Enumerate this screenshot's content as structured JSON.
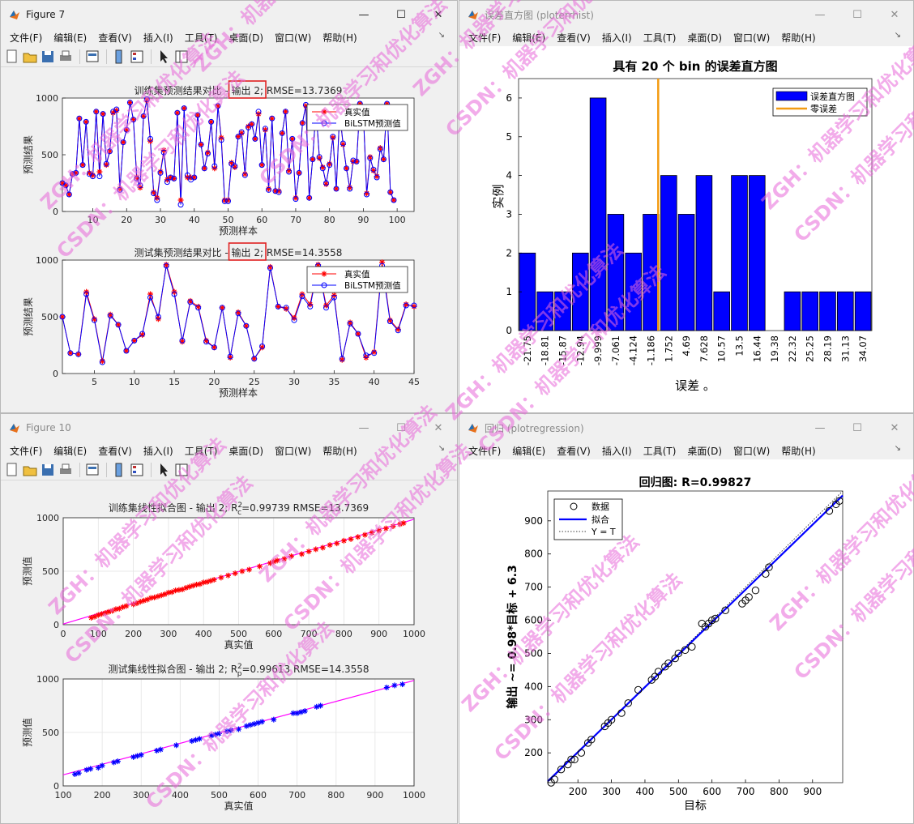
{
  "menu": [
    "文件(F)",
    "编辑(E)",
    "查看(V)",
    "插入(I)",
    "工具(T)",
    "桌面(D)",
    "窗口(W)",
    "帮助(H)"
  ],
  "colors": {
    "actual": "#ff0000",
    "pred": "#0000ff",
    "bar": "#0000ff",
    "zero": "#f39c12",
    "fit": "#0000ff",
    "train_pts": "#ff0000",
    "test_pts": "#0000ff",
    "fitline": "#ff00ff",
    "annot": "#e02020"
  },
  "watermark": {
    "text": "ZGH：机器学习和优化算法",
    "text2": "CSDN：机器学习和优化算法",
    "color": "#e868d8"
  },
  "fig7": {
    "title": "Figure 7",
    "top": {
      "title_a": "训练集预测结果对比 - ",
      "title_b": "输出 2;",
      "title_c": " RMSE=13.7369",
      "xlabel": "预测样本",
      "ylabel": "预测结果",
      "legend": [
        "真实值",
        "BiLSTM预测值"
      ],
      "xticks": [
        "10",
        "20",
        "30",
        "40",
        "50",
        "60",
        "70",
        "80",
        "90",
        "100"
      ],
      "yticks": [
        "0",
        "500",
        "1000"
      ]
    },
    "bottom": {
      "title_a": "测试集预测结果对比 - ",
      "title_b": "输出 2;",
      "title_c": " RMSE=14.3558",
      "xlabel": "预测样本",
      "ylabel": "预测结果",
      "legend": [
        "真实值",
        "BiLSTM预测值"
      ],
      "xticks": [
        "5",
        "10",
        "15",
        "20",
        "25",
        "30",
        "35",
        "40",
        "45"
      ],
      "yticks": [
        "0",
        "500",
        "1000"
      ]
    }
  },
  "hist": {
    "window_title": "误差直方图 (ploterrhist)",
    "title": "具有 20 个 bin 的误差直方图",
    "xlabel": "误差 。",
    "ylabel": "实例",
    "legend": [
      "误差直方图",
      "零误差"
    ],
    "yticks": [
      "0",
      "1",
      "2",
      "3",
      "4",
      "5",
      "6"
    ]
  },
  "fig10": {
    "title": "Figure 10",
    "top": {
      "title": "训练集线性拟合图 - 输出 2; R",
      "sub": "c",
      "sup": "2",
      "rest": "=0.99739  RMSE=13.7369",
      "xlabel": "真实值",
      "ylabel": "预测值",
      "xticks": [
        "0",
        "100",
        "200",
        "300",
        "400",
        "500",
        "600",
        "700",
        "800",
        "900",
        "1000"
      ],
      "yticks": [
        "0",
        "500",
        "1000"
      ]
    },
    "bottom": {
      "title": "测试集线性拟合图 - 输出 2; R",
      "sub": "p",
      "sup": "2",
      "rest": "=0.99613  RMSE=14.3558",
      "xlabel": "真实值",
      "ylabel": "预测值",
      "xticks": [
        "100",
        "200",
        "300",
        "400",
        "500",
        "600",
        "700",
        "800",
        "900",
        "1000"
      ],
      "yticks": [
        "0",
        "500",
        "1000"
      ]
    }
  },
  "regr": {
    "window_title": "回归 (plotregression)",
    "title": "回归图: R=0.99827",
    "xlabel": "目标",
    "ylabel": "输出 ~= 0.98*目标 + 6.3",
    "legend": [
      "数据",
      "拟合",
      "Y = T"
    ],
    "xticks": [
      "200",
      "300",
      "400",
      "500",
      "600",
      "700",
      "800",
      "900"
    ],
    "yticks": [
      "200",
      "300",
      "400",
      "500",
      "600",
      "700",
      "800",
      "900"
    ]
  },
  "chart_data": [
    {
      "type": "line",
      "title": "训练集预测结果对比 - 输出 2; RMSE=13.7369",
      "xlabel": "预测样本",
      "ylabel": "预测结果",
      "xlim": [
        1,
        105
      ],
      "ylim": [
        0,
        1000
      ],
      "x_start": 1,
      "series": [
        {
          "name": "真实值",
          "values": [
            250,
            230,
            150,
            330,
            340,
            820,
            410,
            790,
            340,
            320,
            880,
            350,
            860,
            410,
            530,
            870,
            890,
            200,
            610,
            720,
            960,
            810,
            300,
            210,
            840,
            980,
            620,
            170,
            120,
            350,
            540,
            280,
            300,
            290,
            870,
            100,
            910,
            300,
            300,
            300,
            850,
            590,
            380,
            520,
            790,
            380,
            930,
            650,
            100,
            100,
            430,
            390,
            660,
            690,
            330,
            750,
            770,
            640,
            860,
            410,
            720,
            200,
            820,
            180,
            180,
            690,
            880,
            360,
            640,
            120,
            340,
            780,
            930,
            120,
            460,
            900,
            470,
            390,
            240,
            420,
            650,
            200,
            870,
            590,
            380,
            210,
            440,
            440,
            950,
            870,
            160,
            480,
            360,
            310,
            560,
            460,
            950,
            170,
            100
          ]
        },
        {
          "name": "BiLSTM预测值",
          "values": [
            250,
            230,
            150,
            330,
            340,
            820,
            410,
            790,
            330,
            310,
            880,
            310,
            860,
            420,
            530,
            880,
            900,
            190,
            610,
            720,
            960,
            810,
            290,
            230,
            840,
            990,
            640,
            160,
            100,
            340,
            520,
            260,
            300,
            290,
            870,
            60,
            910,
            320,
            280,
            300,
            850,
            590,
            380,
            510,
            790,
            400,
            930,
            630,
            90,
            90,
            420,
            400,
            660,
            700,
            320,
            740,
            770,
            640,
            880,
            410,
            730,
            190,
            820,
            180,
            170,
            690,
            880,
            350,
            640,
            110,
            340,
            780,
            940,
            120,
            460,
            900,
            480,
            380,
            250,
            410,
            660,
            200,
            870,
            600,
            380,
            200,
            450,
            440,
            950,
            870,
            150,
            470,
            370,
            300,
            550,
            460,
            950,
            170,
            100
          ]
        }
      ]
    },
    {
      "type": "line",
      "title": "测试集预测结果对比 - 输出 2; RMSE=14.3558",
      "xlabel": "预测样本",
      "ylabel": "预测结果",
      "xlim": [
        1,
        45
      ],
      "ylim": [
        0,
        1000
      ],
      "x_start": 1,
      "series": [
        {
          "name": "真实值",
          "values": [
            500,
            180,
            170,
            720,
            480,
            110,
            520,
            430,
            200,
            290,
            340,
            700,
            480,
            960,
            720,
            280,
            640,
            590,
            290,
            230,
            580,
            140,
            540,
            420,
            130,
            230,
            940,
            590,
            570,
            490,
            700,
            610,
            960,
            600,
            690,
            120,
            450,
            350,
            140,
            190,
            980,
            470,
            390,
            610,
            590
          ]
        },
        {
          "name": "BiLSTM预测值",
          "values": [
            500,
            180,
            170,
            700,
            470,
            100,
            510,
            430,
            200,
            290,
            350,
            670,
            500,
            950,
            700,
            290,
            630,
            580,
            280,
            230,
            580,
            150,
            530,
            420,
            130,
            240,
            930,
            590,
            580,
            470,
            680,
            590,
            950,
            580,
            670,
            130,
            440,
            350,
            160,
            180,
            950,
            460,
            380,
            600,
            600
          ]
        }
      ]
    },
    {
      "type": "bar",
      "title": "具有 20 个 bin 的误差直方图",
      "xlabel": "误差 。",
      "ylabel": "实例",
      "categories": [
        "-21.75",
        "-18.81",
        "-15.87",
        "-12.94",
        "-9.999",
        "-7.061",
        "-4.124",
        "-1.186",
        "1.752",
        "4.69",
        "7.628",
        "10.57",
        "13.5",
        "16.44",
        "19.38",
        "22.32",
        "25.25",
        "28.19",
        "31.13",
        "34.07"
      ],
      "values": [
        2,
        1,
        1,
        2,
        6,
        3,
        2,
        3,
        4,
        3,
        4,
        1,
        4,
        4,
        0,
        1,
        1,
        1,
        1,
        1
      ],
      "zero_error_x": 0,
      "ylim": [
        0,
        6.5
      ],
      "legend_position": "top-right"
    },
    {
      "type": "scatter",
      "title": "训练集线性拟合图 - 输出 2; R_c^2=0.99739  RMSE=13.7369",
      "xlabel": "真实值",
      "ylabel": "预测值",
      "xlim": [
        0,
        1000
      ],
      "ylim": [
        0,
        1000
      ],
      "fit": {
        "slope": 0.98,
        "intercept": 6
      },
      "x": [
        80,
        90,
        100,
        110,
        120,
        130,
        140,
        150,
        160,
        170,
        180,
        200,
        210,
        220,
        230,
        240,
        250,
        260,
        270,
        280,
        290,
        300,
        310,
        320,
        330,
        340,
        350,
        360,
        370,
        380,
        390,
        400,
        410,
        420,
        430,
        450,
        470,
        490,
        510,
        530,
        560,
        590,
        600,
        610,
        630,
        650,
        680,
        700,
        720,
        740,
        760,
        780,
        800,
        820,
        840,
        860,
        880,
        900,
        920,
        940,
        960,
        970
      ],
      "y": [
        65,
        75,
        90,
        100,
        110,
        120,
        130,
        145,
        150,
        165,
        175,
        190,
        200,
        215,
        225,
        235,
        250,
        255,
        265,
        275,
        285,
        300,
        305,
        320,
        325,
        330,
        345,
        355,
        365,
        375,
        380,
        395,
        400,
        410,
        420,
        440,
        460,
        480,
        500,
        515,
        545,
        575,
        590,
        600,
        615,
        640,
        660,
        685,
        705,
        720,
        745,
        760,
        785,
        800,
        820,
        840,
        860,
        880,
        900,
        920,
        940,
        950
      ]
    },
    {
      "type": "scatter",
      "title": "测试集线性拟合图 - 输出 2; R_p^2=0.99613  RMSE=14.3558",
      "xlabel": "真实值",
      "ylabel": "预测值",
      "xlim": [
        100,
        1000
      ],
      "ylim": [
        0,
        1000
      ],
      "fit": {
        "slope": 0.98,
        "intercept": 6
      },
      "x": [
        130,
        140,
        160,
        170,
        190,
        200,
        230,
        240,
        280,
        290,
        300,
        340,
        350,
        390,
        430,
        440,
        450,
        480,
        490,
        500,
        520,
        530,
        550,
        570,
        580,
        590,
        600,
        610,
        640,
        690,
        700,
        710,
        720,
        750,
        760,
        930,
        950,
        970
      ],
      "y": [
        110,
        120,
        150,
        160,
        170,
        190,
        220,
        230,
        270,
        280,
        290,
        330,
        340,
        380,
        420,
        430,
        440,
        470,
        480,
        490,
        510,
        520,
        530,
        560,
        570,
        580,
        590,
        600,
        620,
        680,
        680,
        690,
        700,
        740,
        750,
        920,
        940,
        950
      ]
    },
    {
      "type": "scatter",
      "title": "回归图: R=0.99827",
      "xlabel": "目标",
      "ylabel": "输出 ~= 0.98*目标 + 6.3",
      "xlim": [
        110,
        990
      ],
      "ylim": [
        110,
        990
      ],
      "fit": {
        "slope": 0.98,
        "intercept": 6.3
      },
      "legend_position": "top-left",
      "x": [
        120,
        130,
        150,
        170,
        180,
        190,
        210,
        230,
        240,
        280,
        290,
        300,
        330,
        350,
        380,
        420,
        430,
        440,
        460,
        470,
        490,
        500,
        520,
        540,
        570,
        580,
        590,
        600,
        610,
        640,
        690,
        700,
        710,
        730,
        760,
        770,
        950,
        970,
        980
      ],
      "y": [
        110,
        120,
        150,
        165,
        180,
        180,
        200,
        230,
        240,
        280,
        290,
        300,
        320,
        350,
        390,
        420,
        430,
        445,
        460,
        470,
        485,
        500,
        510,
        520,
        590,
        580,
        590,
        600,
        605,
        630,
        650,
        660,
        670,
        690,
        740,
        760,
        930,
        950,
        960
      ]
    }
  ]
}
